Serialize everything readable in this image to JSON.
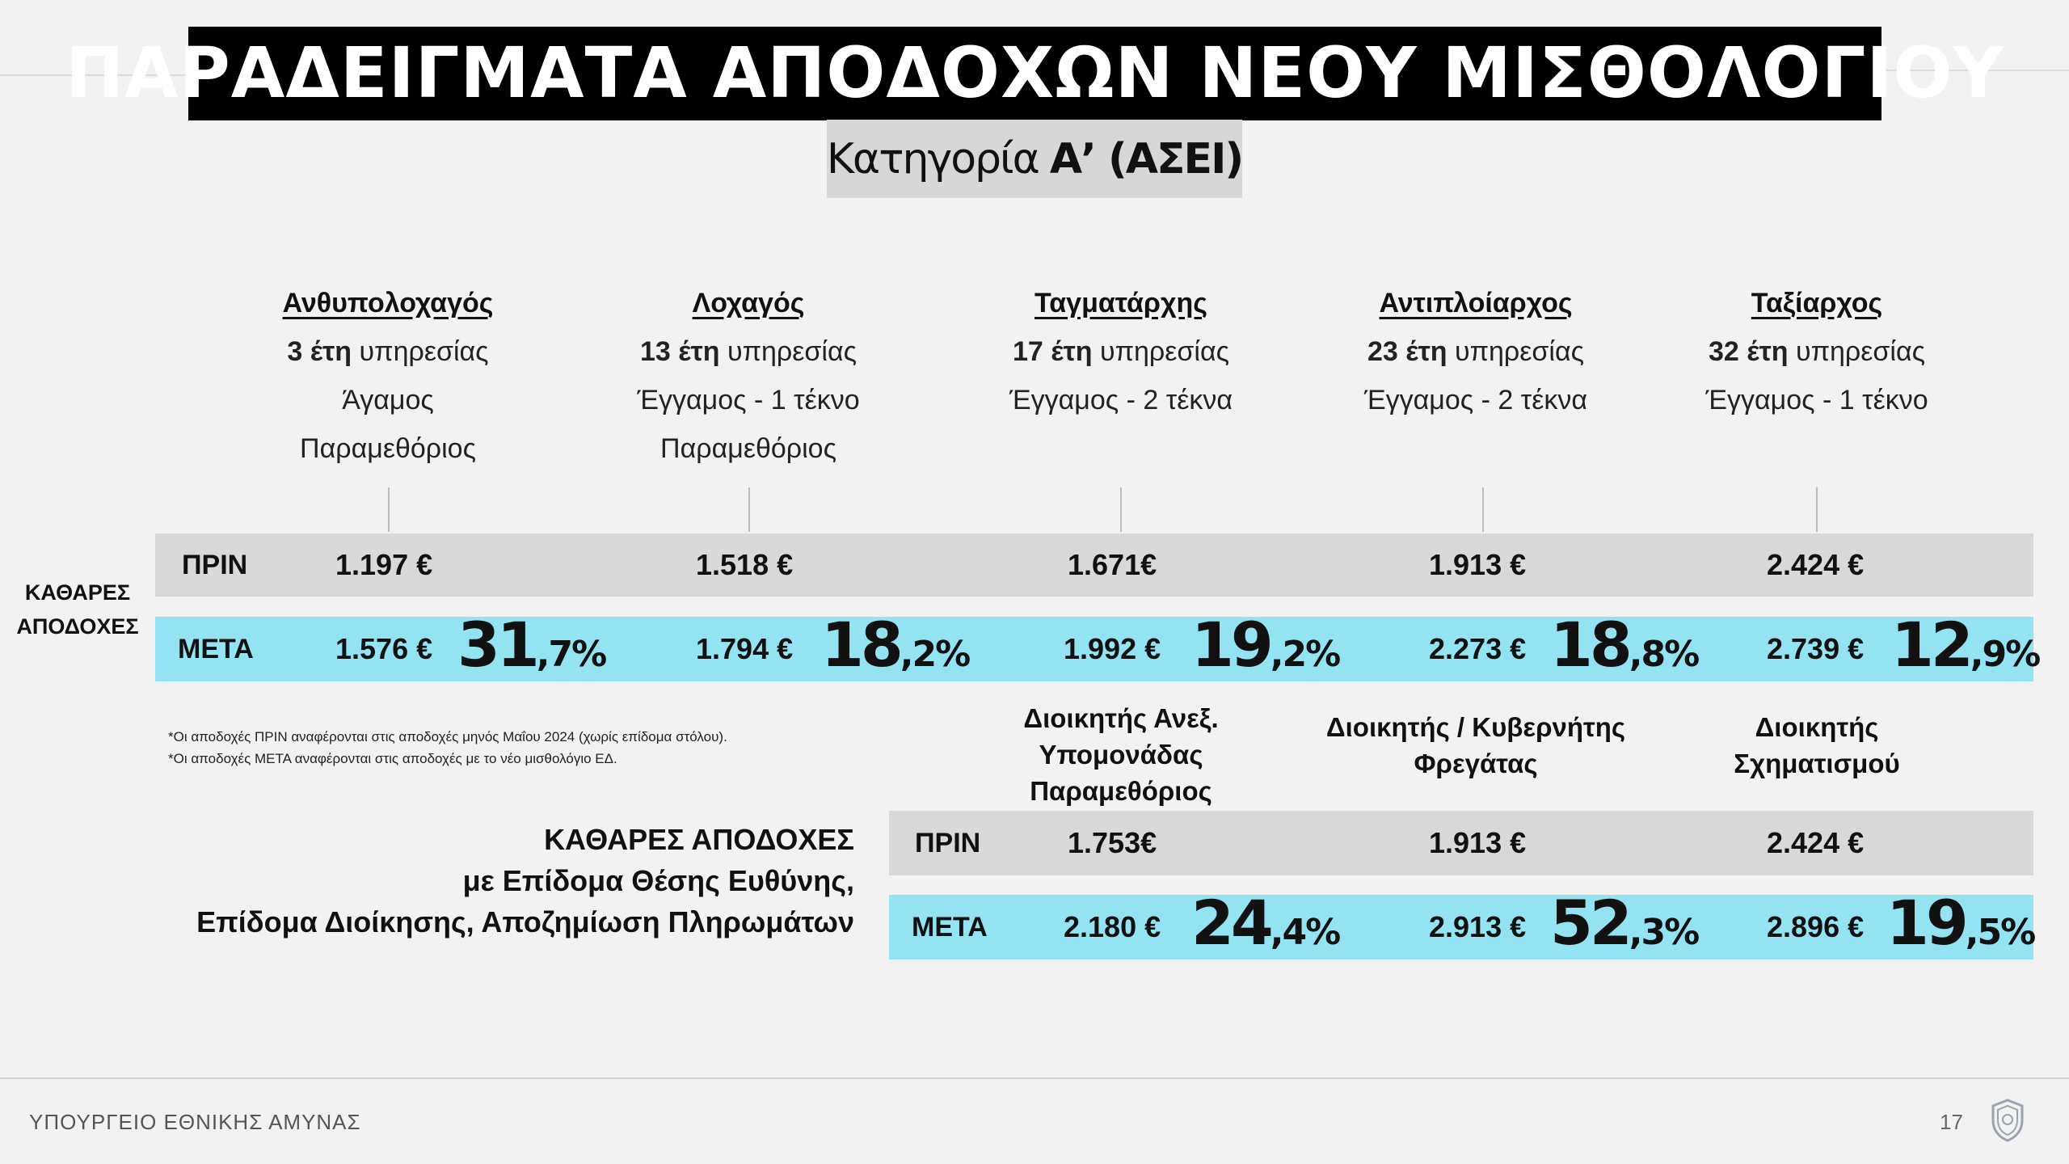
{
  "header": {
    "title": "ΠΑΡΑΔΕΙΓΜΑΤΑ ΑΠΟΔΟΧΩΝ ΝΕΟΥ ΜΙΣΘΟΛΟΓΙΟΥ",
    "subtitle_prefix": "Κατηγορία",
    "subtitle_bold": "Α’ (ΑΣΕΙ)"
  },
  "side_label": {
    "line1": "ΚΑΘΑΡΕΣ",
    "line2": "ΑΠΟΔΟΧΕΣ"
  },
  "row_labels": {
    "before": "ΠΡΙΝ",
    "after": "ΜΕΤΑ"
  },
  "service_suffix": "υπηρεσίας",
  "ranks": [
    {
      "name": "Ανθυπολοχαγός",
      "years": "3 έτη",
      "family": "Άγαμος",
      "extra": "Παραμεθόριος",
      "before": "1.197 €",
      "after": "1.576 €",
      "pct_int": "31",
      "pct_dec": ",7%"
    },
    {
      "name": "Λοχαγός",
      "years": "13 έτη",
      "family": "Έγγαμος - 1 τέκνο",
      "extra": "Παραμεθόριος",
      "before": "1.518 €",
      "after": "1.794 €",
      "pct_int": "18",
      "pct_dec": ",2%"
    },
    {
      "name": "Ταγματάρχης",
      "years": "17 έτη",
      "family": "Έγγαμος - 2 τέκνα",
      "extra": "",
      "before": "1.671€",
      "after": "1.992 €",
      "pct_int": "19",
      "pct_dec": ",2%"
    },
    {
      "name": "Αντιπλοίαρχος",
      "years": "23 έτη",
      "family": "Έγγαμος - 2 τέκνα",
      "extra": "",
      "before": "1.913 €",
      "after": "2.273 €",
      "pct_int": "18",
      "pct_dec": ",8%"
    },
    {
      "name": "Ταξίαρχος",
      "years": "32 έτη",
      "family": "Έγγαμος - 1 τέκνο",
      "extra": "",
      "before": "2.424 €",
      "after": "2.739 €",
      "pct_int": "12",
      "pct_dec": ",9%"
    }
  ],
  "notes": [
    "*Οι αποδοχές ΠΡΙΝ αναφέρονται στις αποδοχές μηνός Μαΐου 2024 (χωρίς επίδομα στόλου).",
    "*Οι αποδοχές ΜΕΤΑ αναφέρονται στις αποδοχές με το νέο μισθολόγιο ΕΔ."
  ],
  "bottom_label": {
    "line1": "ΚΑΘΑΡΕΣ ΑΠΟΔΟΧΕΣ",
    "line2": "με Επίδομα Θέσης Ευθύνης,",
    "line3": "Επίδομα Διοίκησης, Αποζημίωση Πληρωμάτων"
  },
  "positions": [
    {
      "lines": [
        "Διοικητής Ανεξ.",
        "Υπομονάδας",
        "Παραμεθόριος"
      ],
      "before": "1.753€",
      "after": "2.180 €",
      "pct_int": "24",
      "pct_dec": ",4%"
    },
    {
      "lines": [
        "Διοικητής / Κυβερνήτης",
        "Φρεγάτας"
      ],
      "before": "1.913 €",
      "after": "2.913 €",
      "pct_int": "52",
      "pct_dec": ",3%"
    },
    {
      "lines": [
        "Διοικητής",
        "Σχηματισμού"
      ],
      "before": "2.424 €",
      "after": "2.896 €",
      "pct_int": "19",
      "pct_dec": ",5%"
    }
  ],
  "footer": {
    "ministry": "ΥΠΟΥΡΓΕΙΟ ΕΘΝΙΚΗΣ ΑΜΥΝΑΣ",
    "page": "17",
    "emblem_icon": "ministry-emblem-icon"
  }
}
